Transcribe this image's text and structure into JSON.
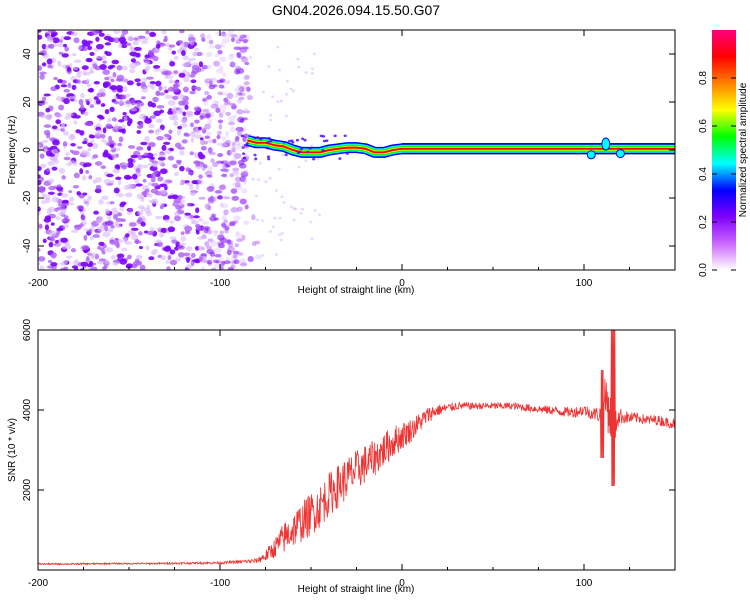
{
  "title": "GN04.2026.094.15.50.G07",
  "chart_data": [
    {
      "type": "heatmap",
      "xlabel": "Height of straight line (km)",
      "ylabel": "Frequency (Hz)",
      "xlim": [
        -200,
        150
      ],
      "ylim": [
        -50,
        50
      ],
      "x_ticks": [
        -200,
        -100,
        0,
        100
      ],
      "y_ticks": [
        -40,
        -20,
        0,
        20,
        40
      ],
      "x_tick_labels": [
        "-200",
        "-100",
        "0",
        "100"
      ],
      "y_tick_labels": [
        "-40",
        "-20",
        "0",
        "20",
        "40"
      ],
      "noise_region_x": [
        -200,
        -85
      ],
      "ridge": [
        {
          "x": -85,
          "f": 4
        },
        {
          "x": -80,
          "f": 3
        },
        {
          "x": -75,
          "f": 3
        },
        {
          "x": -70,
          "f": 2
        },
        {
          "x": -65,
          "f": 1.5
        },
        {
          "x": -60,
          "f": 0
        },
        {
          "x": -55,
          "f": -1
        },
        {
          "x": -50,
          "f": -1
        },
        {
          "x": -45,
          "f": -1
        },
        {
          "x": -40,
          "f": 0
        },
        {
          "x": -35,
          "f": 0.5
        },
        {
          "x": -30,
          "f": 1
        },
        {
          "x": -25,
          "f": 1
        },
        {
          "x": -20,
          "f": 0.5
        },
        {
          "x": -15,
          "f": -1
        },
        {
          "x": -10,
          "f": -1
        },
        {
          "x": -5,
          "f": 0
        },
        {
          "x": 0,
          "f": 0.5
        },
        {
          "x": 150,
          "f": 0.5
        }
      ],
      "colorbar": {
        "label": "Normalized spectral amplitude",
        "range": [
          0,
          1
        ],
        "ticks": [
          0.0,
          0.2,
          0.4,
          0.6,
          0.8
        ],
        "tick_labels": [
          "0.0",
          "0.2",
          "0.4",
          "0.6",
          "0.8"
        ],
        "stops": [
          "#ffffff",
          "#cc66ff",
          "#7f00ff",
          "#0000ff",
          "#00ffff",
          "#00ff00",
          "#ffff00",
          "#ff8000",
          "#ff0000",
          "#ff0080"
        ]
      }
    },
    {
      "type": "line",
      "xlabel": "Height of straight line (km)",
      "ylabel": "SNR (10 * v/v)",
      "xlim": [
        -200,
        150
      ],
      "ylim": [
        0,
        6000
      ],
      "x_ticks": [
        -200,
        -100,
        0,
        100
      ],
      "y_ticks": [
        2000,
        4000,
        6000
      ],
      "x_tick_labels": [
        "-200",
        "-100",
        "0",
        "100"
      ],
      "y_tick_labels": [
        "2000",
        "4000",
        "6000"
      ],
      "color": "#ee3333",
      "series": [
        {
          "name": "SNR",
          "x": [
            -200,
            -180,
            -160,
            -140,
            -120,
            -100,
            -90,
            -80,
            -75,
            -70,
            -65,
            -60,
            -55,
            -50,
            -45,
            -40,
            -35,
            -30,
            -25,
            -20,
            -15,
            -10,
            -5,
            0,
            5,
            10,
            15,
            20,
            25,
            30,
            40,
            50,
            60,
            70,
            80,
            90,
            95,
            100,
            105,
            110,
            112,
            114,
            116,
            118,
            120,
            125,
            130,
            135,
            140,
            145,
            150
          ],
          "y": [
            150,
            150,
            160,
            160,
            170,
            180,
            200,
            230,
            350,
            550,
            800,
            1000,
            1200,
            1400,
            1600,
            1900,
            2100,
            2300,
            2500,
            2650,
            2800,
            3000,
            3200,
            3350,
            3500,
            3700,
            3900,
            4000,
            4050,
            4100,
            4100,
            4100,
            4100,
            4050,
            4000,
            3950,
            3950,
            4000,
            3900,
            3900,
            4300,
            4000,
            3100,
            3800,
            3850,
            3800,
            3800,
            3750,
            3750,
            3700,
            3650
          ],
          "jitter": [
            20,
            20,
            20,
            20,
            25,
            30,
            40,
            60,
            150,
            250,
            400,
            450,
            500,
            550,
            550,
            550,
            550,
            550,
            500,
            500,
            450,
            450,
            400,
            350,
            300,
            250,
            200,
            150,
            120,
            100,
            90,
            90,
            90,
            100,
            110,
            130,
            140,
            150,
            160,
            250,
            700,
            700,
            600,
            300,
            200,
            150,
            130,
            130,
            130,
            130,
            130
          ]
        }
      ]
    }
  ]
}
